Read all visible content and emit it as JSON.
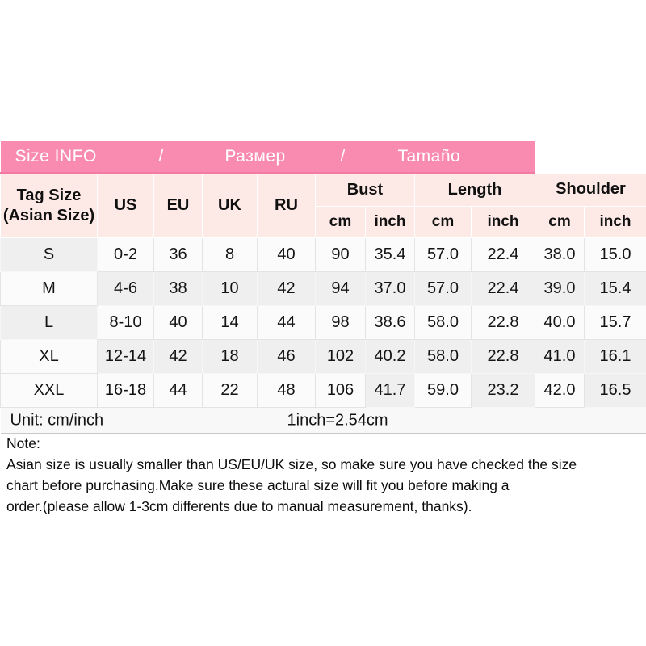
{
  "banner": {
    "title_en": "Size INFO",
    "sep1": "/",
    "title_ru": "Размер",
    "sep2": "/",
    "title_es": "Tamaño"
  },
  "table": {
    "tag_header_line1": "Tag Size",
    "tag_header_line2": "(Asian Size)",
    "region_headers": [
      "US",
      "EU",
      "UK",
      "RU"
    ],
    "measure_groups": [
      {
        "label": "Bust"
      },
      {
        "label": "Length"
      },
      {
        "label": "Shoulder"
      }
    ],
    "unit_subheaders": [
      "cm",
      "inch",
      "cm",
      "inch",
      "cm",
      "inch"
    ],
    "rows": [
      {
        "tag": "S",
        "us": "0-2",
        "eu": "36",
        "uk": "8",
        "ru": "40",
        "bust_cm": "90",
        "bust_inch": "35.4",
        "length_cm": "57.0",
        "length_inch": "22.4",
        "shoulder_cm": "38.0",
        "shoulder_inch": "15.0"
      },
      {
        "tag": "M",
        "us": "4-6",
        "eu": "38",
        "uk": "10",
        "ru": "42",
        "bust_cm": "94",
        "bust_inch": "37.0",
        "length_cm": "57.0",
        "length_inch": "22.4",
        "shoulder_cm": "39.0",
        "shoulder_inch": "15.4"
      },
      {
        "tag": "L",
        "us": "8-10",
        "eu": "40",
        "uk": "14",
        "ru": "44",
        "bust_cm": "98",
        "bust_inch": "38.6",
        "length_cm": "58.0",
        "length_inch": "22.8",
        "shoulder_cm": "40.0",
        "shoulder_inch": "15.7"
      },
      {
        "tag": "XL",
        "us": "12-14",
        "eu": "42",
        "uk": "18",
        "ru": "46",
        "bust_cm": "102",
        "bust_inch": "40.2",
        "length_cm": "58.0",
        "length_inch": "22.8",
        "shoulder_cm": "41.0",
        "shoulder_inch": "16.1"
      },
      {
        "tag": "XXL",
        "us": "16-18",
        "eu": "44",
        "uk": "22",
        "ru": "48",
        "bust_cm": "106",
        "bust_inch": "41.7",
        "length_cm": "59.0",
        "length_inch": "23.2",
        "shoulder_cm": "42.0",
        "shoulder_inch": "16.5"
      }
    ]
  },
  "footer": {
    "unit_label": "Unit: cm/inch",
    "conversion": "1inch=2.54cm"
  },
  "note": {
    "title": "Note:",
    "lines": [
      "Asian size is usually smaller than US/EU/UK size, so make sure you have checked the size",
      "chart before purchasing.Make sure these actural size will fit you before making a",
      "order.(please allow 1-3cm differents due to manual measurement, thanks)."
    ]
  },
  "colors": {
    "banner_pink": "#f98bb0",
    "banner_edge": "#f27ba3",
    "header_pink": "#fdeae6",
    "row_gray": "#efeff0",
    "row_white": "#fbfbfb"
  }
}
